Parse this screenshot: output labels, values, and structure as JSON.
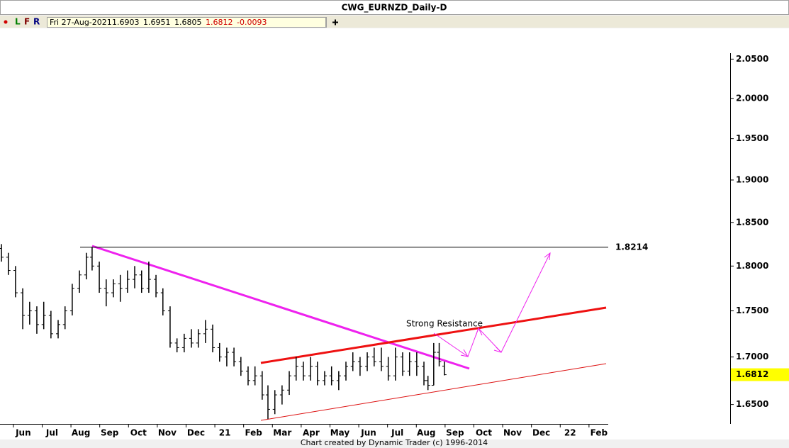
{
  "window_title": "CWG_EURNZD_Daily-D",
  "toolbar": {
    "buttons": [
      "L",
      "F",
      "R"
    ],
    "date": "Fri 27-Aug-2021",
    "values": [
      1.6903,
      1.6951,
      1.6805,
      1.6812,
      -0.0093
    ]
  },
  "footer": "Chart created by Dynamic Trader  (c)  1996-2014",
  "chart_data": {
    "type": "ohlc",
    "color": "#000000",
    "log_scale": true,
    "x": [
      0.24,
      0.48,
      0.73,
      0.98,
      1.22,
      1.47,
      1.71,
      1.96,
      2.21,
      2.45,
      2.7,
      2.95,
      3.19,
      3.39,
      3.64,
      3.88,
      4.13,
      4.37,
      4.62,
      4.87,
      5.11,
      5.36,
      5.61,
      5.85,
      6.1,
      6.34,
      6.59,
      6.84,
      7.08,
      7.33,
      7.58,
      7.82,
      8.07,
      8.32,
      8.56,
      8.81,
      9.05,
      9.3,
      9.5,
      9.74,
      9.99,
      10.24,
      10.48,
      10.73,
      10.98,
      11.22,
      11.47,
      11.71,
      11.96,
      12.21,
      12.45,
      12.7,
      12.95,
      13.19,
      13.44,
      13.68,
      13.93,
      14.18,
      14.42,
      14.67,
      14.92,
      15.06,
      15.26,
      15.45,
      15.63
    ],
    "open": [
      1.82,
      1.81,
      1.795,
      1.77,
      1.745,
      1.75,
      1.735,
      1.745,
      1.725,
      1.735,
      1.75,
      1.775,
      1.79,
      1.81,
      1.8,
      1.775,
      1.77,
      1.78,
      1.775,
      1.785,
      1.79,
      1.775,
      1.785,
      1.77,
      1.75,
      1.715,
      1.71,
      1.72,
      1.715,
      1.725,
      1.73,
      1.71,
      1.7,
      1.705,
      1.695,
      1.685,
      1.675,
      1.68,
      1.66,
      1.645,
      1.66,
      1.665,
      1.68,
      1.69,
      1.68,
      1.69,
      1.675,
      1.68,
      1.675,
      1.68,
      1.69,
      1.695,
      1.69,
      1.7,
      1.695,
      1.69,
      1.68,
      1.7,
      1.685,
      1.695,
      1.69,
      1.675,
      1.67,
      1.705,
      1.6903
    ],
    "high": [
      1.825,
      1.815,
      1.8,
      1.775,
      1.76,
      1.755,
      1.76,
      1.75,
      1.74,
      1.755,
      1.78,
      1.795,
      1.815,
      1.8214,
      1.805,
      1.785,
      1.785,
      1.79,
      1.795,
      1.8,
      1.795,
      1.805,
      1.79,
      1.775,
      1.755,
      1.72,
      1.725,
      1.73,
      1.73,
      1.74,
      1.735,
      1.715,
      1.71,
      1.71,
      1.7,
      1.69,
      1.69,
      1.685,
      1.67,
      1.665,
      1.67,
      1.685,
      1.7,
      1.695,
      1.7,
      1.695,
      1.685,
      1.69,
      1.685,
      1.695,
      1.705,
      1.7,
      1.705,
      1.71,
      1.71,
      1.7,
      1.71,
      1.705,
      1.705,
      1.705,
      1.695,
      1.68,
      1.715,
      1.715,
      1.6951
    ],
    "low": [
      1.805,
      1.79,
      1.765,
      1.73,
      1.735,
      1.725,
      1.73,
      1.72,
      1.72,
      1.73,
      1.745,
      1.77,
      1.785,
      1.795,
      1.77,
      1.755,
      1.765,
      1.76,
      1.77,
      1.775,
      1.77,
      1.77,
      1.765,
      1.745,
      1.71,
      1.705,
      1.705,
      1.71,
      1.71,
      1.715,
      1.705,
      1.695,
      1.69,
      1.69,
      1.68,
      1.67,
      1.67,
      1.655,
      1.635,
      1.64,
      1.65,
      1.66,
      1.675,
      1.675,
      1.675,
      1.67,
      1.67,
      1.67,
      1.665,
      1.675,
      1.685,
      1.68,
      1.685,
      1.69,
      1.685,
      1.675,
      1.675,
      1.68,
      1.68,
      1.68,
      1.67,
      1.665,
      1.67,
      1.69,
      1.6805
    ],
    "close": [
      1.81,
      1.795,
      1.77,
      1.745,
      1.75,
      1.735,
      1.745,
      1.725,
      1.735,
      1.75,
      1.775,
      1.79,
      1.81,
      1.8,
      1.775,
      1.77,
      1.78,
      1.775,
      1.785,
      1.79,
      1.775,
      1.785,
      1.77,
      1.75,
      1.715,
      1.71,
      1.72,
      1.715,
      1.725,
      1.73,
      1.71,
      1.7,
      1.705,
      1.695,
      1.685,
      1.675,
      1.68,
      1.66,
      1.645,
      1.66,
      1.665,
      1.68,
      1.69,
      1.68,
      1.69,
      1.675,
      1.68,
      1.675,
      1.68,
      1.69,
      1.695,
      1.69,
      1.7,
      1.695,
      1.69,
      1.68,
      1.7,
      1.685,
      1.695,
      1.69,
      1.675,
      1.67,
      1.705,
      1.695,
      1.6812
    ],
    "xlim": [
      0.19,
      25.56
    ],
    "xticks": [
      {
        "value": 1,
        "label": "Jun"
      },
      {
        "value": 2,
        "label": "Jul"
      },
      {
        "value": 3,
        "label": "Aug"
      },
      {
        "value": 4,
        "label": "Sep"
      },
      {
        "value": 5,
        "label": "Oct"
      },
      {
        "value": 6,
        "label": "Nov"
      },
      {
        "value": 7,
        "label": "Dec"
      },
      {
        "value": 8,
        "label": "21"
      },
      {
        "value": 9,
        "label": "Feb"
      },
      {
        "value": 10,
        "label": "Mar"
      },
      {
        "value": 11,
        "label": "Apr"
      },
      {
        "value": 12,
        "label": "May"
      },
      {
        "value": 13,
        "label": "Jun"
      },
      {
        "value": 14,
        "label": "Jul"
      },
      {
        "value": 15,
        "label": "Aug"
      },
      {
        "value": 16,
        "label": "Sep"
      },
      {
        "value": 17,
        "label": "Oct"
      },
      {
        "value": 18,
        "label": "Nov"
      },
      {
        "value": 19,
        "label": "Dec"
      },
      {
        "value": 20,
        "label": "22"
      },
      {
        "value": 21,
        "label": "Feb"
      }
    ],
    "ylim": [
      1.63,
      2.09
    ],
    "yticks": [
      {
        "value": 1.65,
        "label": "1.6500"
      },
      {
        "value": 1.7,
        "label": "1.7000"
      },
      {
        "value": 1.75,
        "label": "1.7500"
      },
      {
        "value": 1.8,
        "label": "1.8000"
      },
      {
        "value": 1.85,
        "label": "1.8500"
      },
      {
        "value": 1.9,
        "label": "1.9000"
      },
      {
        "value": 1.95,
        "label": "1.9500"
      },
      {
        "value": 2,
        "label": "2.0000"
      },
      {
        "value": 2.05,
        "label": "2.0500"
      }
    ],
    "level": 1.8214,
    "annotation": "Strong Resistance",
    "price_marker": 1.6812
  }
}
